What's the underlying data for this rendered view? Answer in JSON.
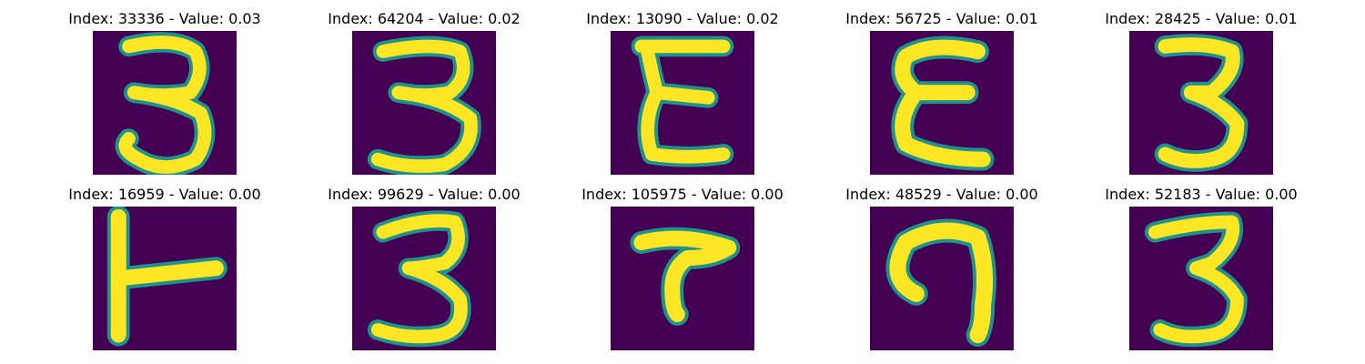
{
  "figure": {
    "background": "#ffffff",
    "image_colormap": {
      "background": "#440154",
      "mid": "#21918c",
      "stroke": "#fde725"
    },
    "panels": [
      {
        "title": "Index: 33336 - Value: 0.03",
        "index": 33336,
        "value": 0.03,
        "glyph": "digit-3-icon"
      },
      {
        "title": "Index: 64204 - Value: 0.02",
        "index": 64204,
        "value": 0.02,
        "glyph": "digit-3-icon"
      },
      {
        "title": "Index: 13090 - Value: 0.02",
        "index": 13090,
        "value": 0.02,
        "glyph": "letter-e-icon"
      },
      {
        "title": "Index: 56725 - Value: 0.01",
        "index": 56725,
        "value": 0.01,
        "glyph": "letter-e-icon"
      },
      {
        "title": "Index: 28425 - Value: 0.01",
        "index": 28425,
        "value": 0.01,
        "glyph": "digit-3-icon"
      },
      {
        "title": "Index: 16959 - Value: 0.00",
        "index": 16959,
        "value": 0.0,
        "glyph": "t-rotated-icon"
      },
      {
        "title": "Index: 99629 - Value: 0.00",
        "index": 99629,
        "value": 0.0,
        "glyph": "digit-3-icon"
      },
      {
        "title": "Index: 105975 - Value: 0.00",
        "index": 105975,
        "value": 0.0,
        "glyph": "t-glyph-icon"
      },
      {
        "title": "Index: 48529 - Value: 0.00",
        "index": 48529,
        "value": 0.0,
        "glyph": "hook-glyph-icon"
      },
      {
        "title": "Index: 52183 - Value: 0.00",
        "index": 52183,
        "value": 0.0,
        "glyph": "digit-3-icon"
      }
    ]
  }
}
